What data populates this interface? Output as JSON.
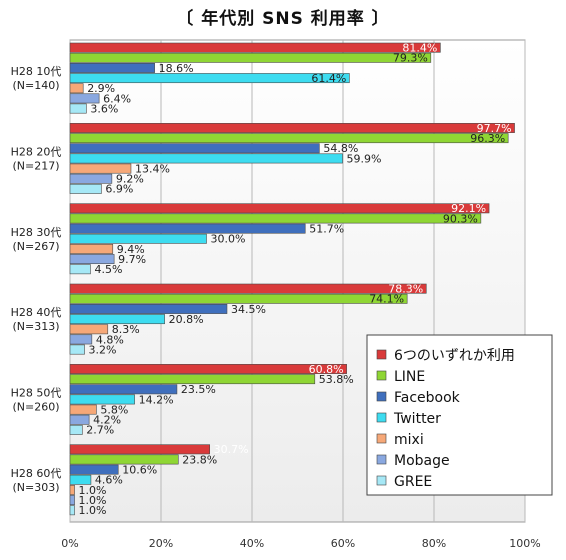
{
  "chart_data": {
    "type": "bar",
    "orientation": "horizontal",
    "title": "〔 年代別 SNS 利用率 〕",
    "xlim": [
      0,
      100
    ],
    "x_ticks": [
      "0%",
      "20%",
      "40%",
      "60%",
      "80%",
      "100%"
    ],
    "grid": true,
    "legend_position": "bottom-right",
    "categories": [
      [
        "H28 10代",
        "(N=140)"
      ],
      [
        "H28 20代",
        "(N=217)"
      ],
      [
        "H28 30代",
        "(N=267)"
      ],
      [
        "H28 40代",
        "(N=313)"
      ],
      [
        "H28 50代",
        "(N=260)"
      ],
      [
        "H28 60代",
        "(N=303)"
      ]
    ],
    "series": [
      {
        "name": "6つのいずれか利用",
        "color": "#d93a3a",
        "values": [
          81.4,
          97.7,
          92.1,
          78.3,
          60.8,
          30.7
        ]
      },
      {
        "name": "LINE",
        "color": "#8fd634",
        "values": [
          79.3,
          96.3,
          90.3,
          74.1,
          53.8,
          23.8
        ]
      },
      {
        "name": "Facebook",
        "color": "#3f6fbd",
        "values": [
          18.6,
          54.8,
          51.7,
          34.5,
          23.5,
          10.6
        ]
      },
      {
        "name": "Twitter",
        "color": "#3ddcf0",
        "values": [
          61.4,
          59.9,
          30.0,
          20.8,
          14.2,
          4.6
        ]
      },
      {
        "name": "mixi",
        "color": "#f6a878",
        "values": [
          2.9,
          13.4,
          9.4,
          8.3,
          5.8,
          1.0
        ]
      },
      {
        "name": "Mobage",
        "color": "#8aa8e0",
        "values": [
          6.4,
          9.2,
          9.7,
          4.8,
          4.2,
          1.0
        ]
      },
      {
        "name": "GREE",
        "color": "#a6e8f6",
        "values": [
          3.6,
          6.9,
          4.5,
          3.2,
          2.7,
          1.0
        ]
      }
    ]
  }
}
